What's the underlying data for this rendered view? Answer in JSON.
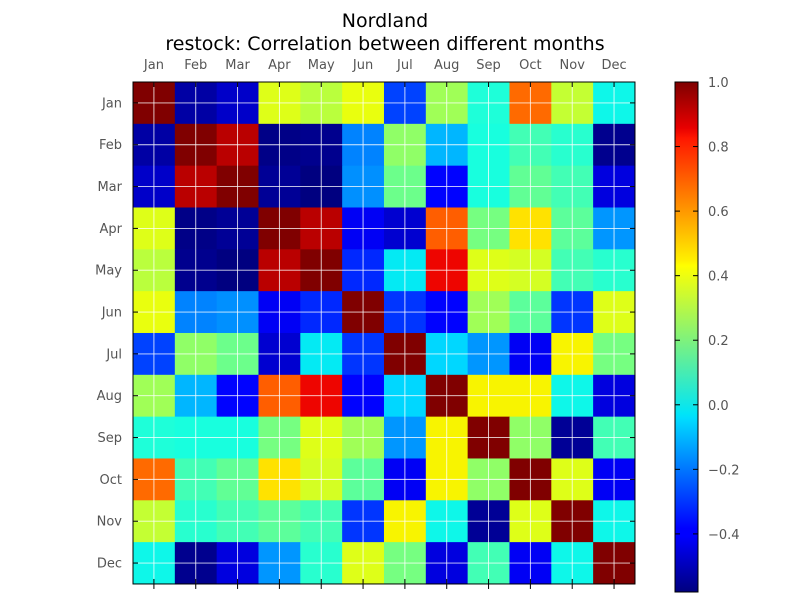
{
  "chart_data": {
    "type": "heatmap",
    "title": "Nordland",
    "subtitle": "restock: Correlation between different months",
    "x_categories": [
      "Jan",
      "Feb",
      "Mar",
      "Apr",
      "May",
      "Jun",
      "Jul",
      "Aug",
      "Sep",
      "Oct",
      "Nov",
      "Dec"
    ],
    "y_categories": [
      "Jan",
      "Feb",
      "Mar",
      "Apr",
      "May",
      "Jun",
      "Jul",
      "Aug",
      "Sep",
      "Oct",
      "Nov",
      "Dec"
    ],
    "values": [
      [
        1.0,
        -0.53,
        -0.48,
        0.4,
        0.33,
        0.42,
        -0.28,
        0.28,
        0.03,
        0.68,
        0.35,
        0.0
      ],
      [
        -0.53,
        1.0,
        0.92,
        -0.57,
        -0.56,
        -0.18,
        0.25,
        -0.1,
        0.02,
        0.1,
        0.05,
        -0.56
      ],
      [
        -0.48,
        0.92,
        1.0,
        -0.55,
        -0.58,
        -0.16,
        0.18,
        -0.38,
        0.02,
        0.16,
        0.1,
        -0.45
      ],
      [
        0.4,
        -0.57,
        -0.55,
        1.0,
        0.92,
        -0.42,
        -0.47,
        0.7,
        0.2,
        0.48,
        0.15,
        -0.15
      ],
      [
        0.33,
        -0.56,
        -0.58,
        0.92,
        1.0,
        -0.32,
        -0.02,
        0.85,
        0.4,
        0.38,
        0.1,
        0.05
      ],
      [
        0.42,
        -0.18,
        -0.16,
        -0.42,
        -0.32,
        1.0,
        -0.3,
        -0.38,
        0.28,
        0.15,
        -0.3,
        0.4
      ],
      [
        -0.28,
        0.25,
        0.18,
        -0.47,
        -0.02,
        -0.3,
        1.0,
        -0.05,
        -0.15,
        -0.42,
        0.45,
        0.2
      ],
      [
        0.28,
        -0.1,
        -0.38,
        0.7,
        0.85,
        -0.38,
        -0.05,
        1.0,
        0.45,
        0.45,
        0.0,
        -0.45
      ],
      [
        0.03,
        0.02,
        0.02,
        0.2,
        0.4,
        0.28,
        -0.15,
        0.45,
        1.0,
        0.25,
        -0.55,
        0.1
      ],
      [
        0.68,
        0.1,
        0.16,
        0.48,
        0.38,
        0.15,
        -0.42,
        0.45,
        0.25,
        1.0,
        0.4,
        -0.42
      ],
      [
        0.35,
        0.05,
        0.1,
        0.15,
        0.1,
        -0.3,
        0.45,
        0.0,
        -0.55,
        0.4,
        1.0,
        0.0
      ],
      [
        0.0,
        -0.56,
        -0.45,
        -0.15,
        0.05,
        0.4,
        0.2,
        -0.45,
        0.1,
        -0.42,
        0.0,
        1.0
      ]
    ],
    "colormap": "jet",
    "vmin": -0.58,
    "vmax": 1.0,
    "colorbar_ticks": [
      "1.0",
      "0.8",
      "0.6",
      "0.4",
      "0.2",
      "0.0",
      "−0.2",
      "−0.4"
    ],
    "colorbar_tick_values": [
      1.0,
      0.8,
      0.6,
      0.4,
      0.2,
      0.0,
      -0.2,
      -0.4
    ],
    "grid": true
  }
}
